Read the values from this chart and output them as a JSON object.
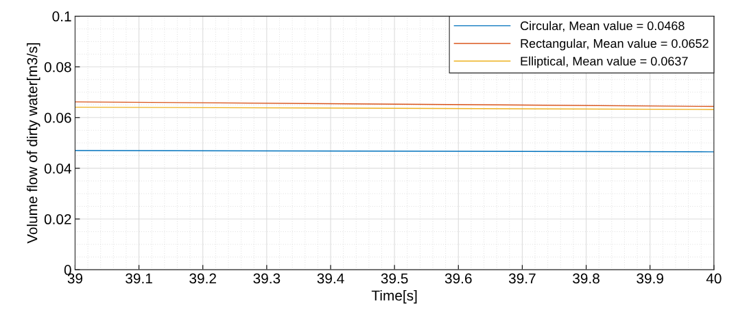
{
  "chart_data": {
    "type": "line",
    "xlabel": "Time[s]",
    "ylabel": "Volume flow of dirty water[m3/s]",
    "x": [
      39,
      40
    ],
    "series": [
      {
        "name": "Circular, Mean value = 0.0468",
        "color": "#0072bd",
        "values": [
          0.047,
          0.0465
        ]
      },
      {
        "name": "Rectangular, Mean value = 0.0652",
        "color": "#d95319",
        "values": [
          0.0662,
          0.0644
        ]
      },
      {
        "name": "Elliptical, Mean value = 0.0637",
        "color": "#edb120",
        "values": [
          0.0641,
          0.0632
        ]
      }
    ],
    "xlim": [
      39,
      40
    ],
    "xticks": [
      39,
      {
        "value": 39.1,
        "label": "39.1"
      },
      {
        "value": 39.2,
        "label": "39.2"
      },
      {
        "value": 39.3,
        "label": "39.3"
      },
      {
        "value": 39.4,
        "label": "39.4"
      },
      {
        "value": 39.5,
        "label": "39.5"
      },
      {
        "value": 39.6,
        "label": "39.6"
      },
      {
        "value": 39.7,
        "label": "39.7"
      },
      {
        "value": 39.8,
        "label": "39.8"
      },
      {
        "value": 39.9,
        "label": "39.9"
      },
      40
    ],
    "ylim": [
      0,
      0.1
    ],
    "yticks": [
      0,
      0.02,
      0.04,
      0.06,
      0.08,
      0.1
    ],
    "grid": true,
    "legend": "top right",
    "line_style": "solid",
    "marker": "none"
  }
}
